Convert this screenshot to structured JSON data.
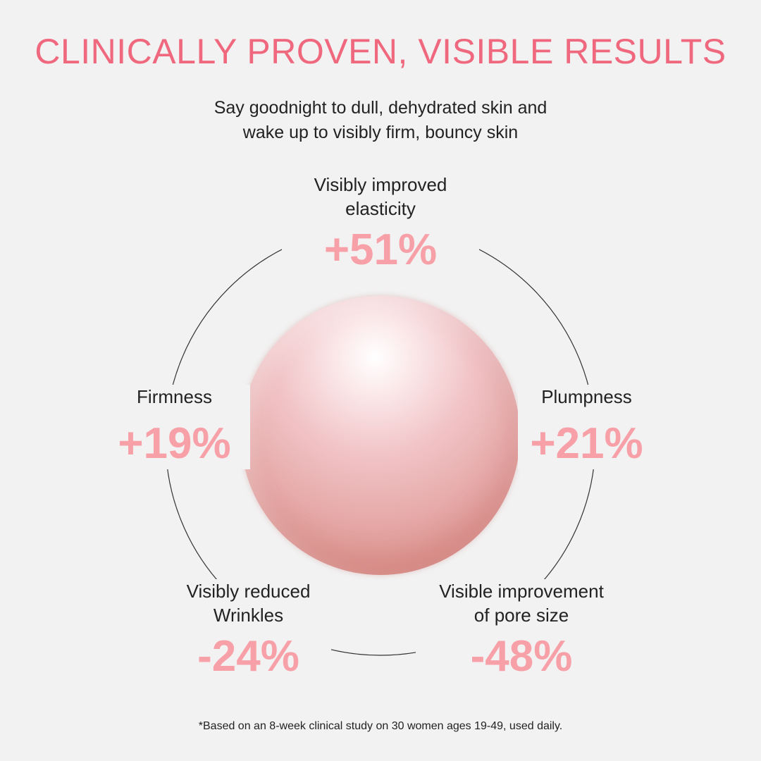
{
  "title": "CLINICALLY PROVEN, VISIBLE RESULTS",
  "subtitle": "Say goodnight to dull, dehydrated skin and\nwake up to visibly firm, bouncy skin",
  "stats": [
    {
      "label": "Visibly improved\nelasticity",
      "value": "+51%"
    },
    {
      "label": "Firmness",
      "value": "+19%"
    },
    {
      "label": "Plumpness",
      "value": "+21%"
    },
    {
      "label": "Visibly reduced\nWrinkles",
      "value": "-24%"
    },
    {
      "label": "Visible improvement\nof pore size",
      "value": "-48%"
    }
  ],
  "footnote": "*Based on an 8-week clinical study on 30 women ages 19-49, used daily.",
  "colors": {
    "title": "#f0687e",
    "value": "#f8a0a8",
    "background": "#f2f2f2"
  }
}
